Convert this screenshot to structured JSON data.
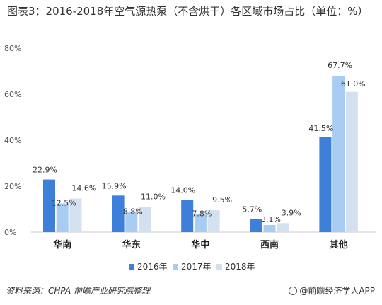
{
  "title": "图表3：2016-2018年空气源热泵（不含烘干）各区域市场占比（单位：%）",
  "source": "资料来源：CHPA 前瞻产业研究院整理",
  "brand": "@前瞻经济学人APP",
  "colors": {
    "2016年": "#3d7fd9",
    "2017年": "#a9cdf2",
    "2018年": "#d3e0ef"
  },
  "chart_data": {
    "type": "bar",
    "categories": [
      "华南",
      "华东",
      "华中",
      "西南",
      "其他"
    ],
    "series": [
      {
        "name": "2016年",
        "values": [
          22.9,
          15.9,
          14.0,
          5.7,
          41.5
        ],
        "labels": [
          "22.9%",
          "15.9%",
          "14.0%",
          "5.7%",
          "41.5%"
        ]
      },
      {
        "name": "2017年",
        "values": [
          12.5,
          8.8,
          7.8,
          3.1,
          67.7
        ],
        "labels": [
          "12.5%",
          "8.8%",
          "7.8%",
          "3.1%",
          "67.7%"
        ]
      },
      {
        "name": "2018年",
        "values": [
          14.6,
          11.0,
          9.5,
          3.9,
          61.0
        ],
        "labels": [
          "14.6%",
          "11.0%",
          "9.5%",
          "3.9%",
          "61.0%"
        ]
      }
    ],
    "yticks": [
      "0%",
      "20%",
      "40%",
      "60%",
      "80%"
    ],
    "ylim": [
      0,
      80
    ],
    "legend_position": "bottom",
    "grid": false
  }
}
